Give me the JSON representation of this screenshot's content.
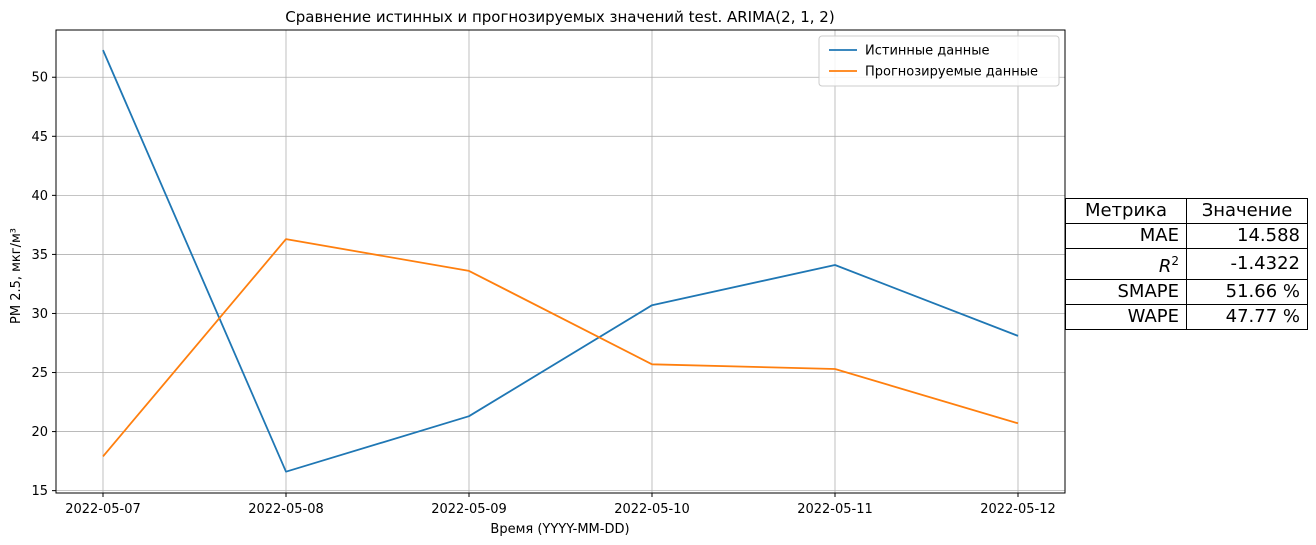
{
  "chart_data": {
    "type": "line",
    "title": "Сравнение истинных и прогнозируемых значений test. ARIMA(2, 1, 2)",
    "xlabel": "Время (YYYY-MM-DD)",
    "ylabel": "PM 2.5, мкг/м³",
    "x": [
      "2022-05-07",
      "2022-05-08",
      "2022-05-09",
      "2022-05-10",
      "2022-05-11",
      "2022-05-12"
    ],
    "ylim": [
      14.8,
      54.0
    ],
    "yticks": [
      15,
      20,
      25,
      30,
      35,
      40,
      45,
      50
    ],
    "grid": true,
    "legend_position": "top-right",
    "series": [
      {
        "name": "Истинные данные",
        "color": "#1f77b4",
        "values": [
          52.3,
          16.6,
          21.3,
          30.7,
          34.1,
          28.1
        ]
      },
      {
        "name": "Прогнозируемые данные",
        "color": "#ff7f0e",
        "values": [
          17.9,
          36.3,
          33.6,
          25.7,
          25.3,
          20.7
        ]
      }
    ]
  },
  "metrics_table": {
    "headers": [
      "Метрика",
      "Значение"
    ],
    "rows": [
      {
        "metric": "MAE",
        "value": "14.588"
      },
      {
        "metric": "R2",
        "value": "-1.4322"
      },
      {
        "metric": "SMAPE",
        "value": "51.66 %"
      },
      {
        "metric": "WAPE",
        "value": "47.77 %"
      }
    ]
  }
}
